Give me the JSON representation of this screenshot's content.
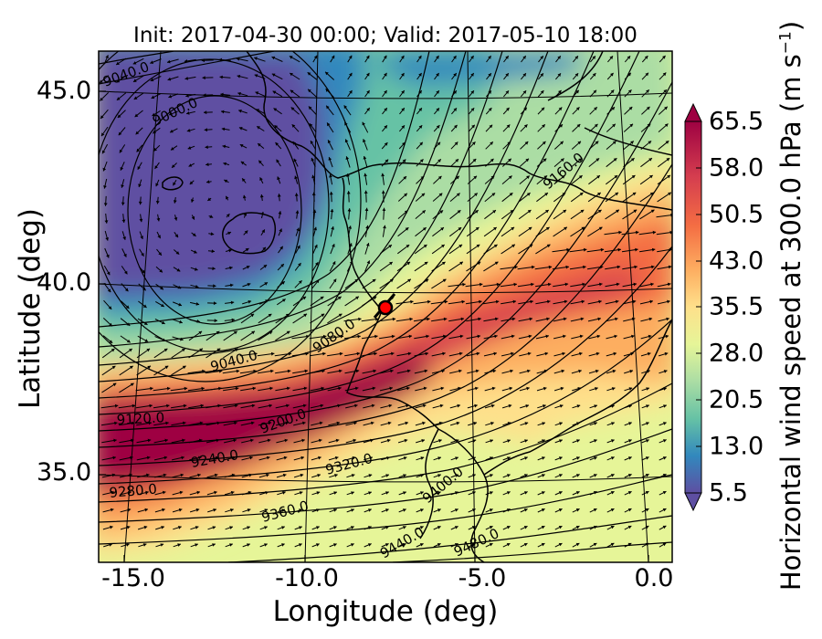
{
  "title": "Init: 2017-04-30 00:00; Valid: 2017-05-10 18:00",
  "axes": {
    "xlabel": "Longitude (deg)",
    "ylabel": "Latitude (deg)",
    "xticks": [
      "-15.0",
      "-10.0",
      "-5.0",
      "0.0"
    ],
    "yticks": [
      "45.0",
      "40.0",
      "35.0"
    ]
  },
  "colorbar": {
    "label_main": "Horizontal wind speed at 300.0 hPa (m s",
    "label_exp": "−1",
    "label_end": ")",
    "ticks": [
      "65.5",
      "58.0",
      "50.5",
      "43.0",
      "35.5",
      "28.0",
      "20.5",
      "13.0",
      "5.5"
    ],
    "min": 5.5,
    "max": 65.5,
    "extend": "both",
    "colormap": "Spectral_r"
  },
  "contour_labels": [
    "9040.0",
    "9000.0",
    "9160.0",
    "9080.0",
    "9040.0",
    "9120.0",
    "9200.0",
    "9240.0",
    "9280.0",
    "9320.0",
    "9360.0",
    "9400.0",
    "9440.0",
    "9480.0"
  ],
  "marker": {
    "lon": -7.6,
    "lat": 39.4,
    "color": "#ff0000"
  },
  "colors": {
    "coast": "#000000",
    "contour": "#000000",
    "vector": "#000000"
  }
}
